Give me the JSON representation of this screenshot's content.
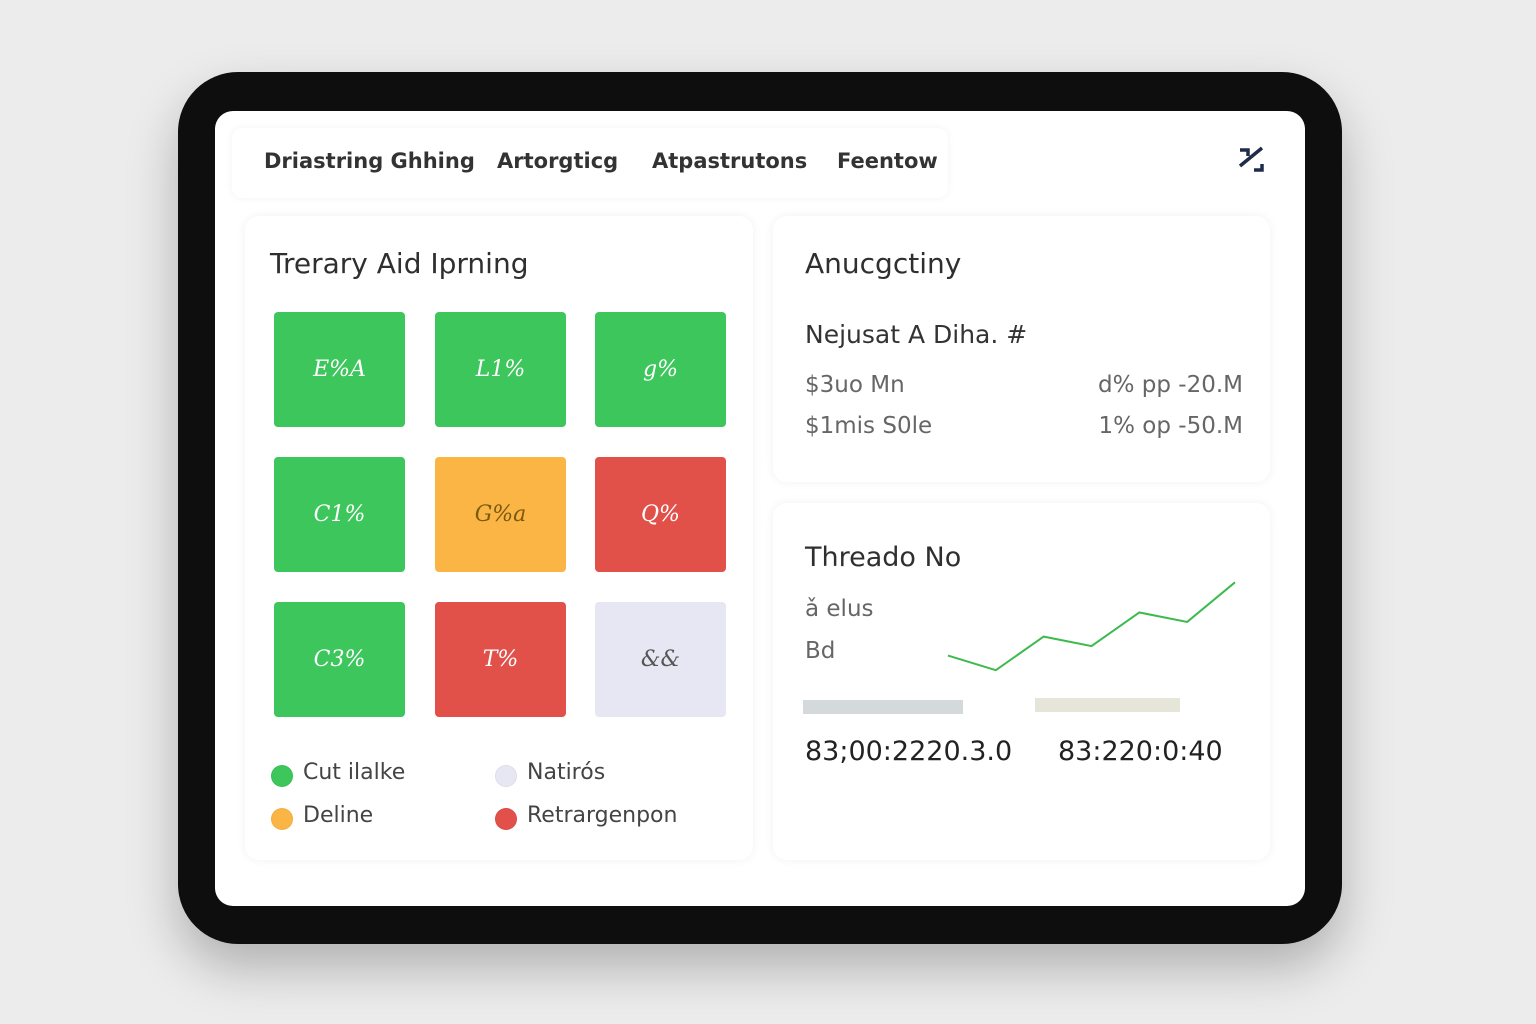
{
  "nav": {
    "tabs": [
      "Driastring Ghhing",
      "Artorgticg",
      "Atpastrutons",
      "Feentow"
    ]
  },
  "status_panel": {
    "title": "Trerary Aid Iprning",
    "tiles": [
      {
        "label": "E%A",
        "status": 0
      },
      {
        "label": "L1%",
        "status": 0
      },
      {
        "label": "g%",
        "status": 0
      },
      {
        "label": "C1%",
        "status": 0
      },
      {
        "label": "G%a",
        "status": 2
      },
      {
        "label": "Q%",
        "status": 3
      },
      {
        "label": "C3%",
        "status": 0
      },
      {
        "label": "T%",
        "status": 3
      },
      {
        "label": "&&",
        "status": 1
      }
    ],
    "legend": [
      {
        "label": "Cut ilalke",
        "color": "#3cc65c"
      },
      {
        "label": "Natirós",
        "color": "#e7e7f3"
      },
      {
        "label": "Deline",
        "color": "#fbb545"
      },
      {
        "label": "Retrargenpon",
        "color": "#e2504a"
      }
    ]
  },
  "summary_panel": {
    "title": "Anucgctiny",
    "subtitle": "Nejusat A Diha. #",
    "rows": [
      [
        "$3uo Mn",
        "d% pp -20.M"
      ],
      [
        "$1mis S0le",
        "1% op -50.M"
      ]
    ]
  },
  "trend_panel": {
    "title": "Threado No",
    "labels": [
      "ǎ elus",
      "Bd"
    ],
    "sparkline": {
      "values": [
        40,
        23,
        62,
        51,
        90,
        79,
        125
      ],
      "ylim": [
        0,
        130
      ],
      "color": "#3dba4e"
    },
    "footer": [
      "83;00:2220.3.0",
      "83:220:0:40"
    ]
  }
}
